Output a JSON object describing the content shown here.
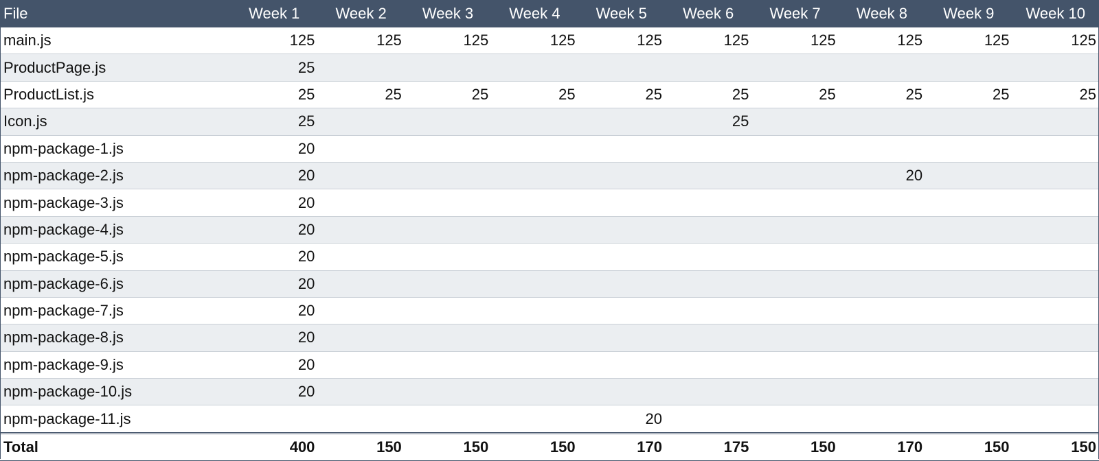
{
  "table": {
    "header": {
      "file": "File",
      "weeks": [
        "Week 1",
        "Week 2",
        "Week 3",
        "Week 4",
        "Week 5",
        "Week 6",
        "Week 7",
        "Week 8",
        "Week 9",
        "Week 10"
      ]
    },
    "rows": [
      {
        "file": "main.js",
        "values": [
          "125",
          "125",
          "125",
          "125",
          "125",
          "125",
          "125",
          "125",
          "125",
          "125"
        ]
      },
      {
        "file": "ProductPage.js",
        "values": [
          "25",
          "",
          "",
          "",
          "",
          "",
          "",
          "",
          "",
          ""
        ]
      },
      {
        "file": "ProductList.js",
        "values": [
          "25",
          "25",
          "25",
          "25",
          "25",
          "25",
          "25",
          "25",
          "25",
          "25"
        ]
      },
      {
        "file": "Icon.js",
        "values": [
          "25",
          "",
          "",
          "",
          "",
          "25",
          "",
          "",
          "",
          ""
        ]
      },
      {
        "file": "npm-package-1.js",
        "values": [
          "20",
          "",
          "",
          "",
          "",
          "",
          "",
          "",
          "",
          ""
        ]
      },
      {
        "file": "npm-package-2.js",
        "values": [
          "20",
          "",
          "",
          "",
          "",
          "",
          "",
          "20",
          "",
          ""
        ]
      },
      {
        "file": "npm-package-3.js",
        "values": [
          "20",
          "",
          "",
          "",
          "",
          "",
          "",
          "",
          "",
          ""
        ]
      },
      {
        "file": "npm-package-4.js",
        "values": [
          "20",
          "",
          "",
          "",
          "",
          "",
          "",
          "",
          "",
          ""
        ]
      },
      {
        "file": "npm-package-5.js",
        "values": [
          "20",
          "",
          "",
          "",
          "",
          "",
          "",
          "",
          "",
          ""
        ]
      },
      {
        "file": "npm-package-6.js",
        "values": [
          "20",
          "",
          "",
          "",
          "",
          "",
          "",
          "",
          "",
          ""
        ]
      },
      {
        "file": "npm-package-7.js",
        "values": [
          "20",
          "",
          "",
          "",
          "",
          "",
          "",
          "",
          "",
          ""
        ]
      },
      {
        "file": "npm-package-8.js",
        "values": [
          "20",
          "",
          "",
          "",
          "",
          "",
          "",
          "",
          "",
          ""
        ]
      },
      {
        "file": "npm-package-9.js",
        "values": [
          "20",
          "",
          "",
          "",
          "",
          "",
          "",
          "",
          "",
          ""
        ]
      },
      {
        "file": "npm-package-10.js",
        "values": [
          "20",
          "",
          "",
          "",
          "",
          "",
          "",
          "",
          "",
          ""
        ]
      },
      {
        "file": "npm-package-11.js",
        "values": [
          "",
          "",
          "",
          "",
          "20",
          "",
          "",
          "",
          "",
          ""
        ]
      }
    ],
    "total": {
      "label": "Total",
      "values": [
        "400",
        "150",
        "150",
        "150",
        "170",
        "175",
        "150",
        "170",
        "150",
        "150"
      ]
    }
  },
  "colors": {
    "header_bg": "#44546a",
    "header_text": "#ffffff",
    "stripe_bg": "#ebeef1",
    "row_border": "#c9cfd6"
  }
}
